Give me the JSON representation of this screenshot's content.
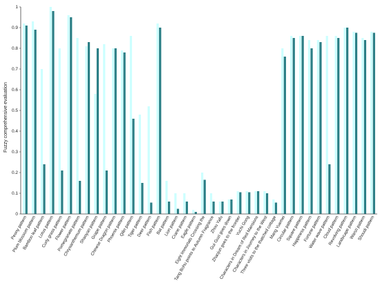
{
  "chart_data": {
    "type": "bar",
    "ylabel": "Fuzzy comprehensive evaluation",
    "ylim": [
      0,
      1
    ],
    "yticks": [
      "0",
      "0.1",
      "0.2",
      "0.3",
      "0.4",
      "0.5",
      "0.6",
      "0.7",
      "0.8",
      "0.9",
      "1"
    ],
    "grid": false,
    "colors": {
      "light": "#ccffff",
      "dark": "#2b7f86",
      "axis": "#444444"
    },
    "categories": [
      "Peony pattern",
      "Plum blossom pattern",
      "Bamboo leaf pattern",
      "Lotus pattern",
      "Curly grass pattern",
      "Flower pattern",
      "Pomegranate pattern",
      "Chrysanthemum pattern",
      "Shaoyao pattern",
      "Grape pattern",
      "Chinese Dragon pattern",
      "Phoenix pattern",
      "Qilin pattern",
      "Tiger pattern",
      "Deer pattern",
      "Fish pattern",
      "Bat pattern",
      "Lion pattern",
      "Crane pattern",
      "Eagle pattern",
      "Eight Immortals Crossing the",
      "Tang Bohu points to Autumn Fragrance",
      "Zhou Yafu",
      "Gui Guzi goes down",
      "Zhaojun goes to the frontier",
      "Yuchi Gong",
      "Characters in Dream of Red Mansions",
      "Characters in Journey to the West",
      "Three visits to the thatched cottage",
      "Mang Yuemei",
      "Circular pattern",
      "Square pattern",
      "Happiness pattern",
      "Fortune pattern",
      "Water wave pattern",
      "Cloud pattern",
      "Revolving pattern",
      "Landscape pattern",
      "Wanzi pattern",
      "Shoudi pattern"
    ],
    "series": [
      {
        "values": [
          0.92,
          0.93,
          0.7,
          1.0,
          0.8,
          0.96,
          0.85,
          0.81,
          0.58,
          0.82,
          0.8,
          0.79,
          0.86,
          0.48,
          0.52,
          0.92,
          0.16,
          0.1,
          0.1,
          0.02,
          0.2,
          0.1,
          0.06,
          0.07,
          0.11,
          0.11,
          0.11,
          0.11,
          0.07,
          0.8,
          0.86,
          0.86,
          0.84,
          0.84,
          0.86,
          0.86,
          0.9,
          0.88,
          0.85,
          0.88
        ]
      },
      {
        "values": [
          0.91,
          0.89,
          0.24,
          0.98,
          0.21,
          0.95,
          0.16,
          0.83,
          0.8,
          0.21,
          0.8,
          0.78,
          0.46,
          0.15,
          0.055,
          0.9,
          0.06,
          0.025,
          0.06,
          0.01,
          0.165,
          0.06,
          0.06,
          0.07,
          0.105,
          0.105,
          0.11,
          0.1,
          0.055,
          0.76,
          0.85,
          0.86,
          0.8,
          0.83,
          0.24,
          0.85,
          0.9,
          0.875,
          0.84,
          0.875
        ]
      }
    ]
  }
}
